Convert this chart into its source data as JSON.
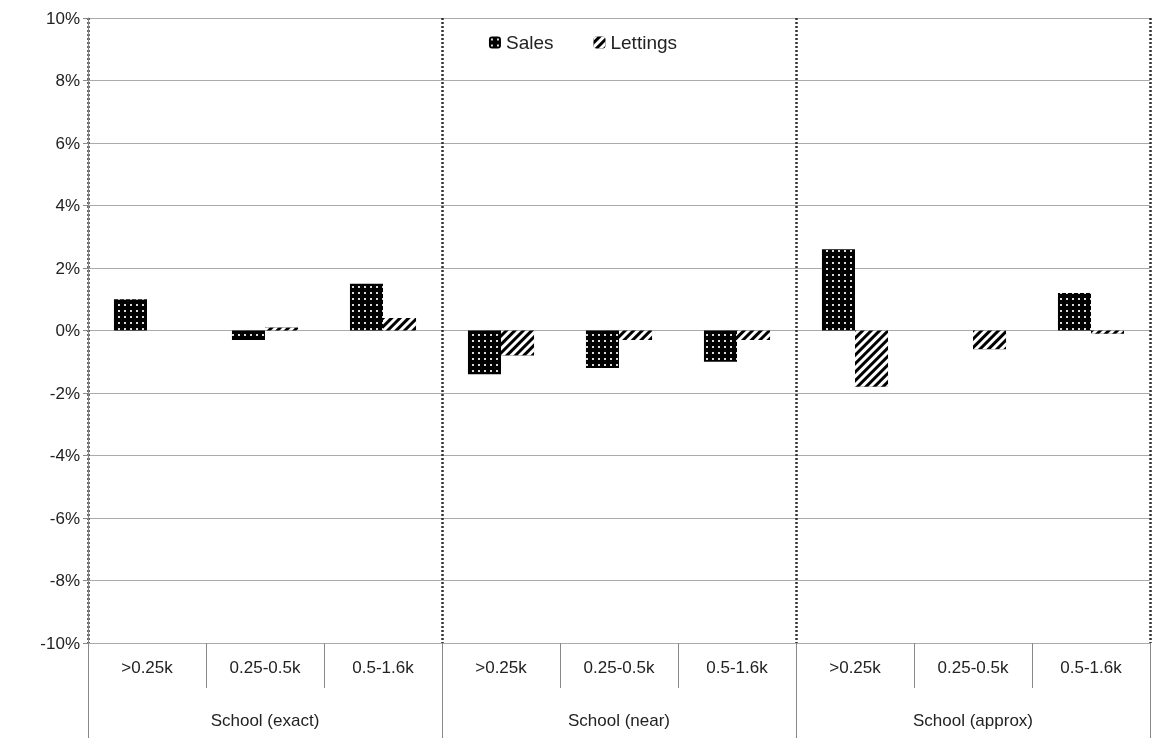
{
  "chart_data": {
    "type": "bar",
    "categories": [
      ">0.25k",
      "0.25-0.5k",
      "0.5-1.6k",
      ">0.25k",
      "0.25-0.5k",
      "0.5-1.6k",
      ">0.25k",
      "0.25-0.5k",
      "0.5-1.6k"
    ],
    "annotations": [
      "School (exact)",
      "School (near)",
      "School (approx)"
    ],
    "series": [
      {
        "name": "Sales",
        "color": "#000000",
        "values": [
          1.0,
          -0.3,
          1.5,
          -1.4,
          -1.2,
          -1.0,
          2.6,
          0,
          1.2
        ]
      },
      {
        "name": "Lettings",
        "color": "#000000",
        "values": [
          0,
          0.1,
          0.4,
          -0.8,
          -0.3,
          -0.3,
          -1.8,
          -0.6,
          -0.1
        ]
      }
    ],
    "ylim": [
      -10,
      10
    ],
    "yticks": [
      {
        "value": -10,
        "label": "-10%"
      },
      {
        "value": -8,
        "label": "-8%"
      },
      {
        "value": -6,
        "label": "-6%"
      },
      {
        "value": -4,
        "label": "-4%"
      },
      {
        "value": -2,
        "label": "-2%"
      },
      {
        "value": 0,
        "label": "0%"
      },
      {
        "value": 2,
        "label": "2%"
      },
      {
        "value": 4,
        "label": "4%"
      },
      {
        "value": 6,
        "label": "6%"
      },
      {
        "value": 8,
        "label": "8%"
      },
      {
        "value": 10,
        "label": "10%"
      }
    ],
    "grid": "y",
    "legend": "top"
  }
}
